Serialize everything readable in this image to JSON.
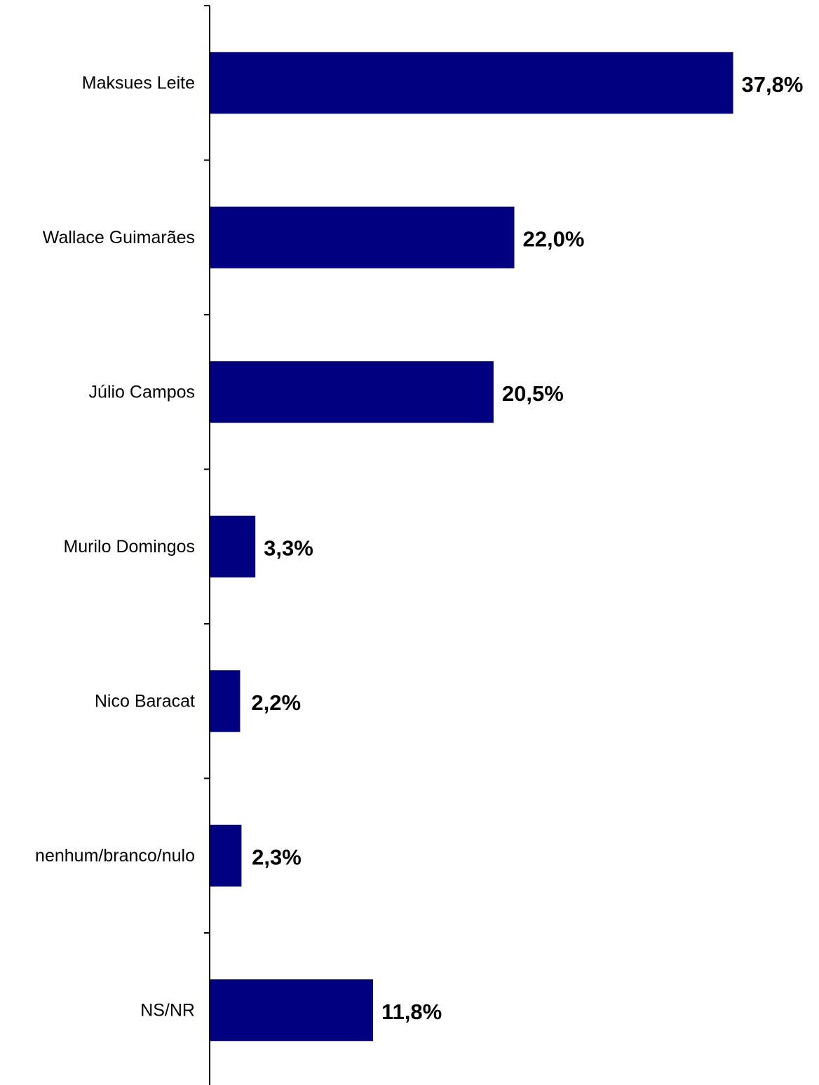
{
  "chart_data": {
    "type": "bar",
    "orientation": "horizontal",
    "categories": [
      "Maksues Leite",
      "Wallace Guimarães",
      "Júlio Campos",
      "Murilo Domingos",
      "Nico Baracat",
      "nenhum/branco/nulo",
      "NS/NR"
    ],
    "values": [
      37.8,
      22.0,
      20.5,
      3.3,
      2.2,
      2.3,
      11.8
    ],
    "value_labels": [
      "37,8%",
      "22,0%",
      "20,5%",
      "3,3%",
      "2,2%",
      "2,3%",
      "11,8%"
    ],
    "title": "",
    "xlabel": "",
    "ylabel": "",
    "xlim": [
      0,
      40
    ],
    "grid": false,
    "legend": "none",
    "colors": {
      "bar": "#000080",
      "axis": "#000000",
      "text": "#000000"
    }
  }
}
